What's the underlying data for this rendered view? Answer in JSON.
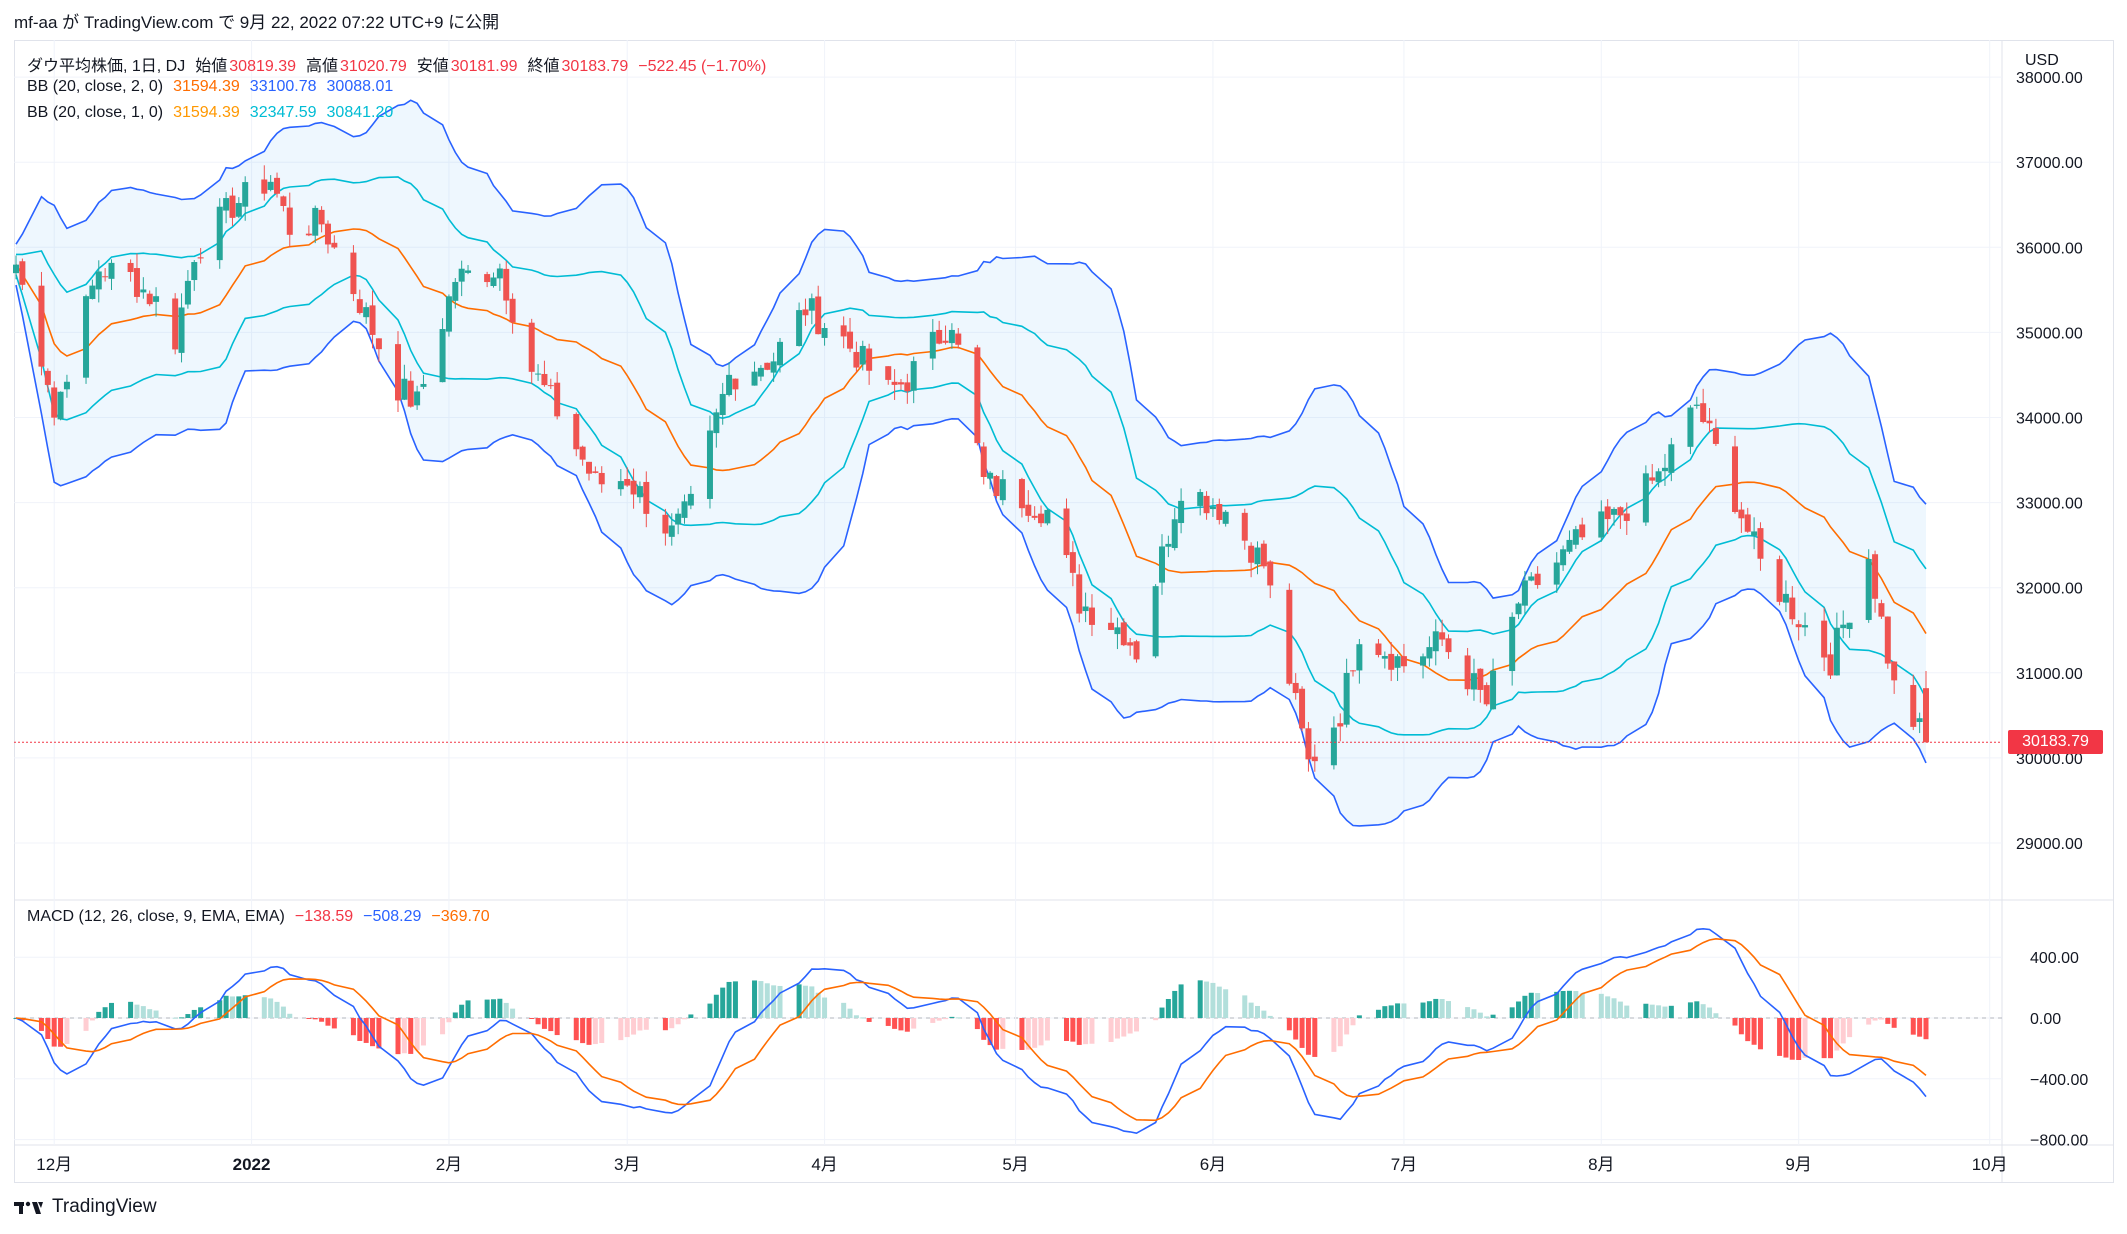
{
  "header": {
    "text": "mf-aa が TradingView.com で 9月 22, 2022 07:22 UTC+9 に公開"
  },
  "legend": {
    "symbol": "ダウ平均株価, 1日, DJ",
    "open_label": "始値",
    "open": "30819.39",
    "high_label": "高値",
    "high": "31020.79",
    "low_label": "安値",
    "low": "30181.99",
    "close_label": "終値",
    "close": "30183.79",
    "change": "−522.45 (−1.70%)",
    "bb1_label": "BB (20, close, 2, 0)",
    "bb1_basis": "31594.39",
    "bb1_upper": "33100.78",
    "bb1_lower": "30088.01",
    "bb2_label": "BB (20, close, 1, 0)",
    "bb2_basis": "31594.39",
    "bb2_upper": "32347.59",
    "bb2_lower": "30841.20",
    "macd_label": "MACD (12, 26, close, 9, EMA, EMA)",
    "macd_hist": "−138.59",
    "macd_line": "−508.29",
    "macd_signal": "−369.70"
  },
  "currency": "USD",
  "last_price_tag": "30183.79",
  "footer": {
    "brand": "TradingView"
  },
  "colors": {
    "up": "#26a69a",
    "down": "#ef5350",
    "bb_outer": "#2962ff",
    "bb_inner": "#00bcd4",
    "basis": "#ff6d00",
    "macd": "#2962ff",
    "signal": "#ff6d00"
  },
  "chart_data": {
    "type": "candlestick",
    "main_y_ticks": [
      "29000.00",
      "30000.00",
      "31000.00",
      "32000.00",
      "33000.00",
      "34000.00",
      "35000.00",
      "36000.00",
      "37000.00",
      "38000.00"
    ],
    "main_ylim": [
      28000,
      38600
    ],
    "macd_y_ticks": [
      "−800.00",
      "−400.00",
      "0.00",
      "400.00"
    ],
    "macd_ylim": [
      -800,
      700
    ],
    "x_ticks": [
      "12月",
      "2022",
      "2月",
      "3月",
      "4月",
      "5月",
      "6月",
      "7月",
      "8月",
      "9月",
      "10月"
    ],
    "close_path": [
      [
        "2021-11-25",
        35800
      ],
      [
        "2021-11-30",
        34480
      ],
      [
        "2021-12-01",
        34020
      ],
      [
        "2021-12-03",
        34580
      ],
      [
        "2021-12-08",
        35750
      ],
      [
        "2021-12-13",
        35650
      ],
      [
        "2021-12-17",
        35360
      ],
      [
        "2021-12-20",
        34930
      ],
      [
        "2021-12-23",
        35950
      ],
      [
        "2021-12-29",
        36490
      ],
      [
        "2022-01-04",
        36800
      ],
      [
        "2022-01-07",
        36230
      ],
      [
        "2022-01-12",
        36290
      ],
      [
        "2022-01-18",
        35360
      ],
      [
        "2022-01-24",
        34360
      ],
      [
        "2022-01-27",
        34160
      ],
      [
        "2022-02-02",
        35630
      ],
      [
        "2022-02-09",
        35770
      ],
      [
        "2022-02-14",
        34570
      ],
      [
        "2022-02-18",
        34080
      ],
      [
        "2022-02-24",
        33220
      ],
      [
        "2022-03-01",
        33290
      ],
      [
        "2022-03-08",
        32630
      ],
      [
        "2022-03-11",
        32940
      ],
      [
        "2022-03-17",
        34480
      ],
      [
        "2022-03-24",
        34700
      ],
      [
        "2022-03-29",
        35290
      ],
      [
        "2022-04-04",
        34920
      ],
      [
        "2022-04-11",
        34300
      ],
      [
        "2022-04-14",
        34450
      ],
      [
        "2022-04-21",
        35160
      ],
      [
        "2022-04-26",
        33240
      ],
      [
        "2022-05-02",
        33060
      ],
      [
        "2022-05-06",
        32900
      ],
      [
        "2022-05-11",
        31830
      ],
      [
        "2022-05-18",
        31490
      ],
      [
        "2022-05-20",
        31260
      ],
      [
        "2022-05-27",
        33210
      ],
      [
        "2022-06-03",
        32900
      ],
      [
        "2022-06-09",
        32270
      ],
      [
        "2022-06-16",
        29930
      ],
      [
        "2022-06-21",
        30530
      ],
      [
        "2022-06-24",
        31500
      ],
      [
        "2022-07-01",
        31100
      ],
      [
        "2022-07-07",
        31380
      ],
      [
        "2022-07-14",
        30630
      ],
      [
        "2022-07-19",
        31830
      ],
      [
        "2022-07-28",
        32530
      ],
      [
        "2022-08-03",
        32800
      ],
      [
        "2022-08-10",
        33310
      ],
      [
        "2022-08-16",
        34150
      ],
      [
        "2022-08-22",
        33060
      ],
      [
        "2022-08-26",
        32280
      ],
      [
        "2022-09-01",
        31650
      ],
      [
        "2022-09-06",
        31150
      ],
      [
        "2022-09-12",
        32380
      ],
      [
        "2022-09-16",
        30820
      ],
      [
        "2022-09-21",
        30184
      ]
    ]
  }
}
